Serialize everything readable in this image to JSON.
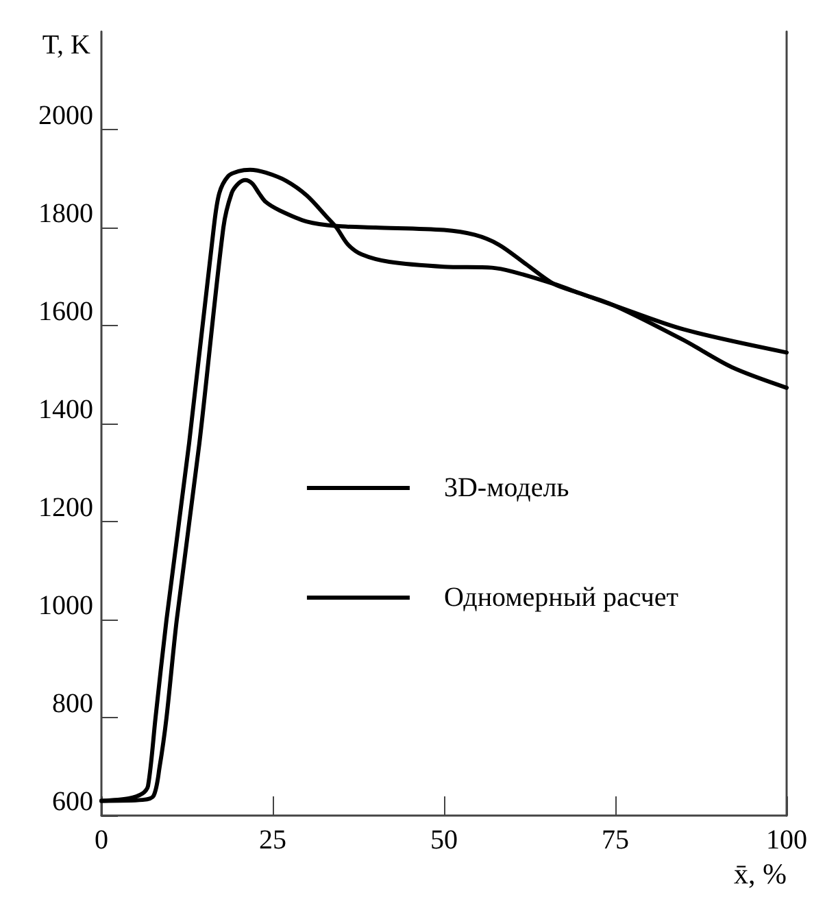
{
  "chart_data": {
    "type": "line",
    "xlabel": "x̄, %",
    "ylabel": "T, K",
    "xlim": [
      0,
      100
    ],
    "ylim": [
      600,
      2200
    ],
    "xticks": [
      0,
      25,
      50,
      75,
      100
    ],
    "yticks": [
      600,
      800,
      1000,
      1200,
      1400,
      1600,
      1800,
      2000
    ],
    "grid": false,
    "legend": "center",
    "marker": "none",
    "line_style": "solid",
    "series": [
      {
        "name": "3D-модель",
        "color": "#000000",
        "x": [
          0,
          4,
          6,
          6.8,
          7.9,
          9.5,
          12.8,
          16.4,
          17.2,
          18.5,
          20,
          21.7,
          24,
          27,
          30,
          33,
          34.3,
          36,
          38,
          42,
          50,
          57,
          60,
          66,
          70,
          75,
          85,
          100
        ],
        "values": [
          630,
          635,
          645,
          660,
          800,
          1000,
          1360,
          1800,
          1870,
          1905,
          1915,
          1918,
          1912,
          1895,
          1865,
          1820,
          1800,
          1765,
          1745,
          1730,
          1720,
          1718,
          1710,
          1685,
          1665,
          1640,
          1592,
          1545
        ]
      },
      {
        "name": "Одномерный расчет",
        "color": "#000000",
        "x": [
          0,
          6,
          7.6,
          8.5,
          9.5,
          11,
          14.3,
          17.8,
          19,
          20,
          21,
          22,
          23,
          24,
          26,
          30,
          34.3,
          40,
          50,
          54.5,
          58,
          62,
          66,
          70,
          75,
          85,
          92,
          100
        ],
        "values": [
          630,
          632,
          640,
          700,
          800,
          1000,
          1360,
          1800,
          1870,
          1890,
          1897,
          1890,
          1870,
          1852,
          1835,
          1812,
          1803,
          1800,
          1795,
          1785,
          1765,
          1725,
          1685,
          1665,
          1640,
          1570,
          1515,
          1473
        ]
      }
    ]
  }
}
